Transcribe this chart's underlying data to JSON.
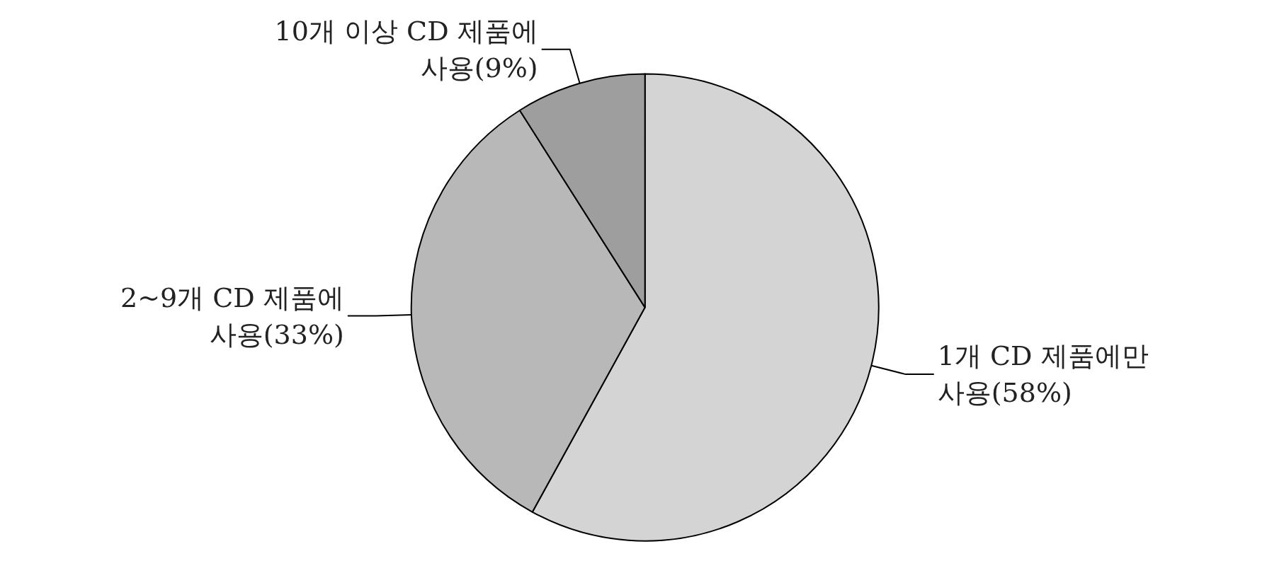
{
  "chart_data": {
    "type": "pie",
    "categories": [
      "1개 CD 제품에만 사용(58%)",
      "2~9개 CD 제품에 사용(33%)",
      "10개 이상 CD 제품에 사용(9%)"
    ],
    "values": [
      58,
      33,
      9
    ],
    "colors": [
      "#d4d4d4",
      "#b8b8b8",
      "#9e9e9e"
    ]
  }
}
